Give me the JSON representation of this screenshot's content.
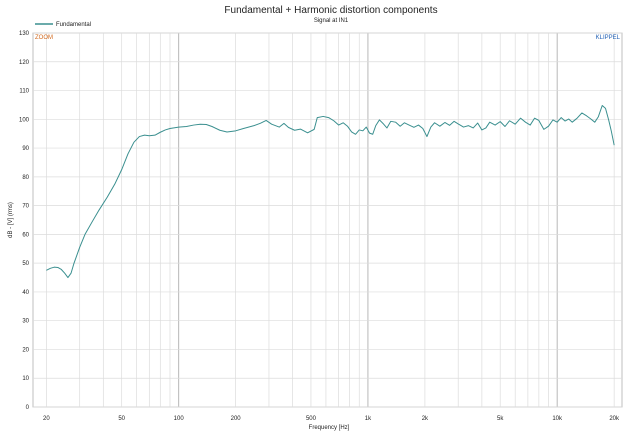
{
  "chart_data": {
    "type": "line",
    "title": "Fundamental + Harmonic distortion components",
    "subtitle": "Signal at IN1",
    "xlabel": "Frequency [Hz]",
    "ylabel": "dB - [V] (rms)",
    "xscale": "log",
    "xlim": [
      17,
      22000
    ],
    "ylim": [
      0,
      130
    ],
    "grid": true,
    "legend_position": "top-left",
    "x_ticks": [
      {
        "value": 20,
        "label": "20"
      },
      {
        "value": 50,
        "label": "50"
      },
      {
        "value": 100,
        "label": "100"
      },
      {
        "value": 200,
        "label": "200"
      },
      {
        "value": 500,
        "label": "500"
      },
      {
        "value": 1000,
        "label": "1k"
      },
      {
        "value": 2000,
        "label": "2k"
      },
      {
        "value": 5000,
        "label": "5k"
      },
      {
        "value": 10000,
        "label": "10k"
      },
      {
        "value": 20000,
        "label": "20k"
      }
    ],
    "y_ticks": [
      0,
      10,
      20,
      30,
      40,
      50,
      60,
      70,
      80,
      90,
      100,
      110,
      120,
      130
    ],
    "annotations": {
      "top_left": "ZOOM",
      "top_right": "KLIPPEL"
    },
    "series": [
      {
        "name": "Fundamental",
        "color": "#3a8f8f",
        "points": [
          [
            20,
            47.5
          ],
          [
            21,
            48.2
          ],
          [
            22,
            48.6
          ],
          [
            23,
            48.5
          ],
          [
            24,
            47.8
          ],
          [
            25,
            46.5
          ],
          [
            26,
            45.0
          ],
          [
            27,
            46.5
          ],
          [
            28,
            50.0
          ],
          [
            30,
            55.5
          ],
          [
            32,
            60.0
          ],
          [
            35,
            64.5
          ],
          [
            38,
            68.5
          ],
          [
            42,
            73.0
          ],
          [
            46,
            77.5
          ],
          [
            50,
            82.5
          ],
          [
            54,
            88.0
          ],
          [
            58,
            92.0
          ],
          [
            62,
            94.0
          ],
          [
            66,
            94.5
          ],
          [
            70,
            94.3
          ],
          [
            75,
            94.5
          ],
          [
            80,
            95.5
          ],
          [
            85,
            96.3
          ],
          [
            90,
            96.8
          ],
          [
            100,
            97.3
          ],
          [
            110,
            97.5
          ],
          [
            120,
            98.0
          ],
          [
            130,
            98.3
          ],
          [
            140,
            98.2
          ],
          [
            150,
            97.5
          ],
          [
            165,
            96.2
          ],
          [
            180,
            95.6
          ],
          [
            200,
            96.0
          ],
          [
            220,
            96.8
          ],
          [
            250,
            97.8
          ],
          [
            270,
            98.6
          ],
          [
            290,
            99.6
          ],
          [
            310,
            98.3
          ],
          [
            340,
            97.3
          ],
          [
            360,
            98.6
          ],
          [
            380,
            97.2
          ],
          [
            410,
            96.2
          ],
          [
            440,
            96.6
          ],
          [
            480,
            95.3
          ],
          [
            520,
            96.5
          ],
          [
            540,
            100.6
          ],
          [
            580,
            101.0
          ],
          [
            620,
            100.6
          ],
          [
            660,
            99.5
          ],
          [
            700,
            98.0
          ],
          [
            740,
            98.8
          ],
          [
            780,
            97.6
          ],
          [
            820,
            95.6
          ],
          [
            860,
            94.8
          ],
          [
            900,
            96.3
          ],
          [
            940,
            96.0
          ],
          [
            980,
            97.3
          ],
          [
            1020,
            95.2
          ],
          [
            1060,
            94.8
          ],
          [
            1100,
            97.8
          ],
          [
            1150,
            99.8
          ],
          [
            1200,
            98.6
          ],
          [
            1260,
            97.0
          ],
          [
            1320,
            99.3
          ],
          [
            1400,
            99.0
          ],
          [
            1480,
            97.6
          ],
          [
            1560,
            98.8
          ],
          [
            1650,
            98.0
          ],
          [
            1750,
            97.2
          ],
          [
            1850,
            98.0
          ],
          [
            1950,
            96.8
          ],
          [
            2050,
            94.0
          ],
          [
            2150,
            97.3
          ],
          [
            2250,
            98.8
          ],
          [
            2400,
            97.6
          ],
          [
            2550,
            98.9
          ],
          [
            2700,
            97.9
          ],
          [
            2850,
            99.3
          ],
          [
            3000,
            98.4
          ],
          [
            3200,
            97.3
          ],
          [
            3400,
            97.8
          ],
          [
            3600,
            97.0
          ],
          [
            3800,
            98.7
          ],
          [
            4000,
            96.3
          ],
          [
            4200,
            97.0
          ],
          [
            4400,
            99.0
          ],
          [
            4700,
            98.0
          ],
          [
            5000,
            99.2
          ],
          [
            5300,
            97.5
          ],
          [
            5600,
            99.5
          ],
          [
            6000,
            98.3
          ],
          [
            6400,
            100.4
          ],
          [
            6800,
            99.0
          ],
          [
            7200,
            98.0
          ],
          [
            7600,
            100.4
          ],
          [
            8000,
            99.6
          ],
          [
            8500,
            96.5
          ],
          [
            9000,
            97.6
          ],
          [
            9500,
            99.8
          ],
          [
            10000,
            99.0
          ],
          [
            10500,
            100.6
          ],
          [
            11000,
            99.4
          ],
          [
            11500,
            100.1
          ],
          [
            12000,
            99.0
          ],
          [
            12700,
            100.3
          ],
          [
            13500,
            102.2
          ],
          [
            14300,
            101.2
          ],
          [
            15000,
            100.2
          ],
          [
            15800,
            99.0
          ],
          [
            16500,
            100.9
          ],
          [
            17300,
            104.8
          ],
          [
            18000,
            103.8
          ],
          [
            18700,
            99.8
          ],
          [
            19300,
            96.0
          ],
          [
            20000,
            91.0
          ]
        ]
      }
    ]
  }
}
